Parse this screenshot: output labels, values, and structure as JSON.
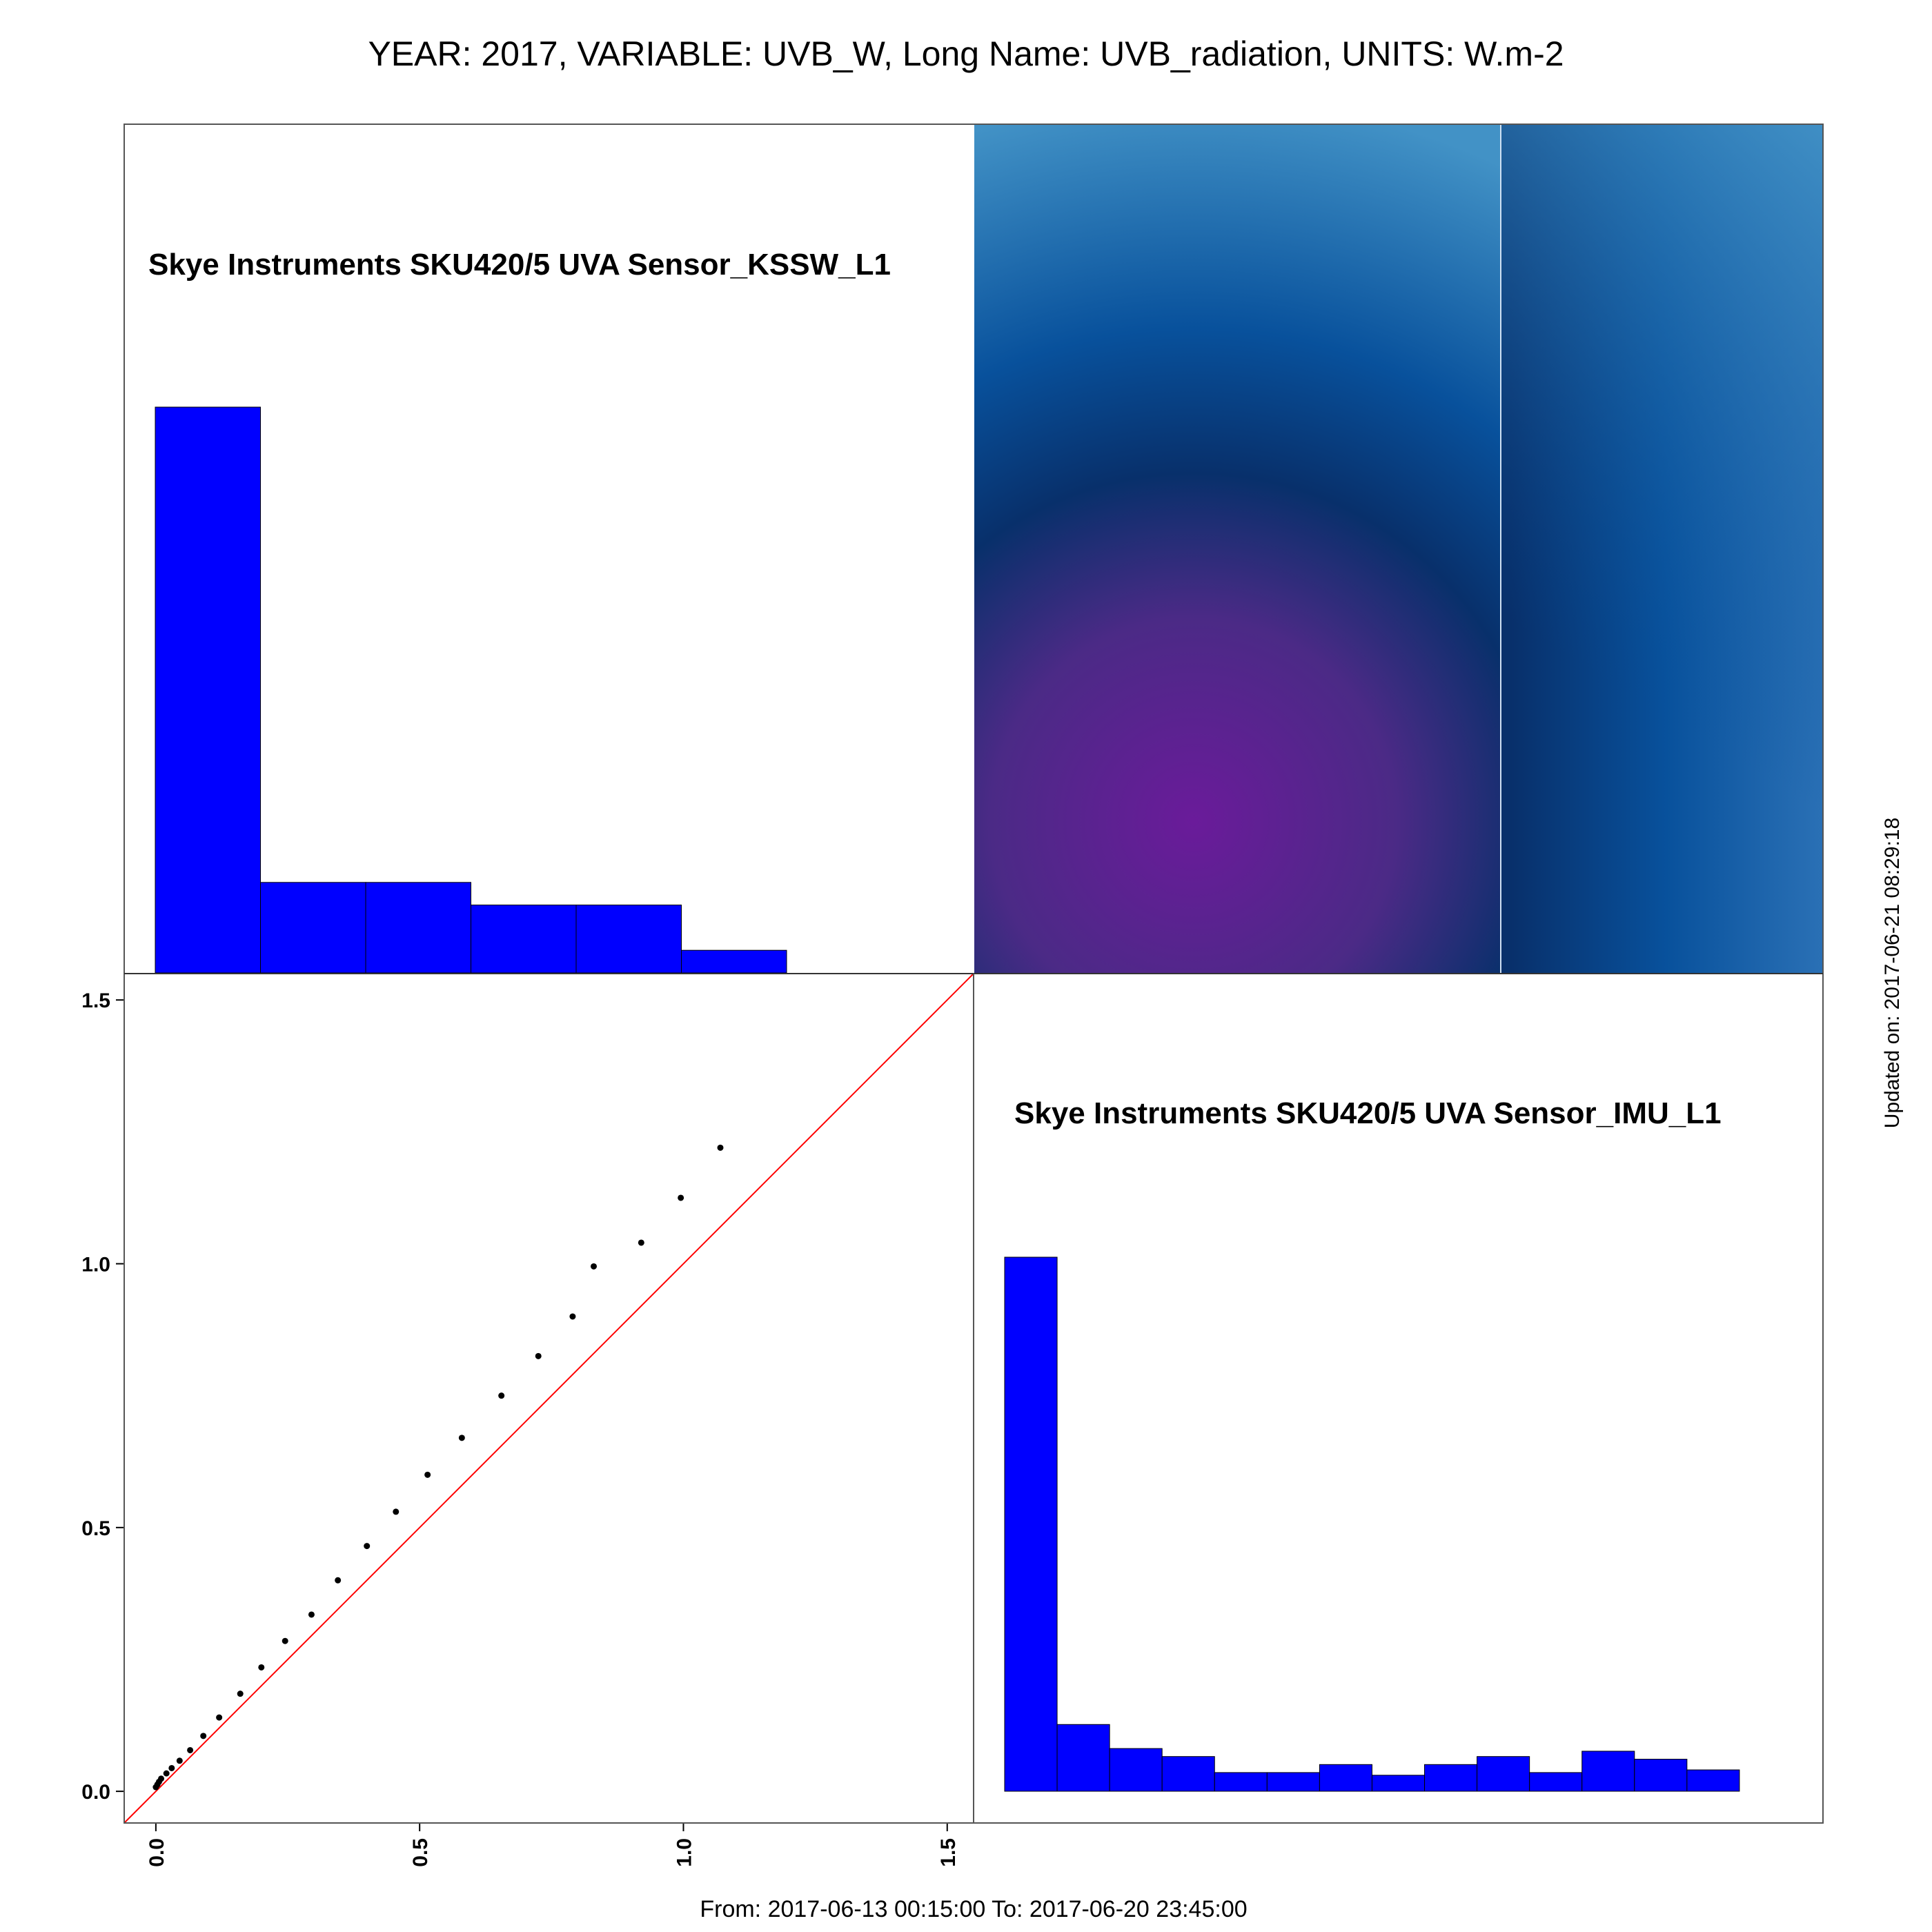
{
  "header": {
    "title": "YEAR: 2017, VARIABLE: UVB_W, Long Name: UVB_radiation, UNITS: W.m-2"
  },
  "footer": {
    "date_range": "From: 2017-06-13 00:15:00 To: 2017-06-20 23:45:00",
    "updated": "Updated on: 2017-06-21 08:29:18"
  },
  "colors": {
    "bar_fill": "#0000ff",
    "bar_stroke": "#000000",
    "reference_line": "#ff0000",
    "points": "#000000",
    "frame": "#555555",
    "density_dark": "#08306b",
    "density_mid": "#08519c",
    "density_light": "#4292c6",
    "density_peak": "#6a1b9a"
  },
  "chart_data": [
    {
      "type": "bar",
      "panel": "top-left histogram",
      "label": "Skye Instruments SKU420/5 UVA Sensor_KSSW_L1",
      "bin_edges": [
        0.0,
        0.2,
        0.4,
        0.6,
        0.8,
        1.0,
        1.2
      ],
      "values": [
        100,
        16,
        16,
        12,
        12,
        4
      ]
    },
    {
      "type": "heatmap",
      "panel": "top-right density",
      "description_colors": [
        "#08306b",
        "#08519c",
        "#4292c6",
        "#6a1b9a"
      ]
    },
    {
      "type": "scatter",
      "panel": "bottom-left QQ plot",
      "xlim": [
        -0.06,
        1.55
      ],
      "ylim": [
        -0.06,
        1.55
      ],
      "x_ticks": [
        "0.0",
        "0.5",
        "1.0",
        "1.5"
      ],
      "y_ticks": [
        "0.0",
        "0.5",
        "1.0",
        "1.5"
      ],
      "reference_line": "y = x",
      "x": [
        0.0,
        0.003,
        0.006,
        0.01,
        0.02,
        0.03,
        0.045,
        0.065,
        0.09,
        0.12,
        0.16,
        0.2,
        0.245,
        0.295,
        0.345,
        0.4,
        0.455,
        0.515,
        0.58,
        0.655,
        0.725,
        0.79,
        0.83,
        0.92,
        0.995,
        1.07
      ],
      "y": [
        0.008,
        0.013,
        0.018,
        0.024,
        0.034,
        0.044,
        0.058,
        0.078,
        0.105,
        0.14,
        0.185,
        0.235,
        0.285,
        0.335,
        0.4,
        0.465,
        0.53,
        0.6,
        0.67,
        0.75,
        0.825,
        0.9,
        0.995,
        1.04,
        1.125,
        1.22
      ]
    },
    {
      "type": "bar",
      "panel": "bottom-right histogram",
      "label": "Skye Instruments SKU420/5 UVA Sensor_IMU_L1",
      "values": [
        100,
        12.5,
        8,
        6.5,
        3.5,
        3.5,
        5,
        3,
        5,
        6.5,
        3.5,
        7.5,
        6,
        4,
        0
      ]
    }
  ]
}
